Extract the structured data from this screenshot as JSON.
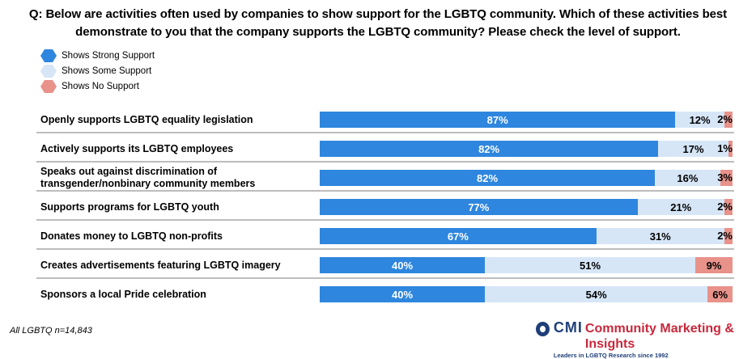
{
  "chart_data": {
    "type": "bar",
    "stacked": true,
    "orientation": "horizontal",
    "title": "Q: Below are activities often used by companies to show support for the LGBTQ community. Which of these activities best demonstrate to you that the company supports the LGBTQ community? Please check the level of support.",
    "categories": [
      "Openly supports LGBTQ equality legislation",
      "Actively supports its LGBTQ employees",
      "Speaks out against discrimination of transgender/nonbinary community members",
      "Supports programs for LGBTQ youth",
      "Donates money to LGBTQ non-profits",
      "Creates advertisements featuring LGBTQ imagery",
      "Sponsors a local Pride celebration"
    ],
    "series": [
      {
        "name": "Shows Strong Support",
        "color": "#2e86de",
        "values": [
          87,
          82,
          82,
          77,
          67,
          40,
          40
        ]
      },
      {
        "name": "Shows Some Support",
        "color": "#d6e6f7",
        "values": [
          12,
          17,
          16,
          21,
          31,
          51,
          54
        ]
      },
      {
        "name": "Shows No Support",
        "color": "#e8928a",
        "values": [
          2,
          1,
          3,
          2,
          2,
          9,
          6
        ]
      }
    ],
    "legend": "top-left",
    "unit": "%"
  },
  "footnote": "All LGBTQ n=14,843",
  "logo": {
    "cmi": "CMI",
    "name": "Community Marketing & Insights",
    "tagline": "Leaders in LGBTQ Research since 1992"
  }
}
